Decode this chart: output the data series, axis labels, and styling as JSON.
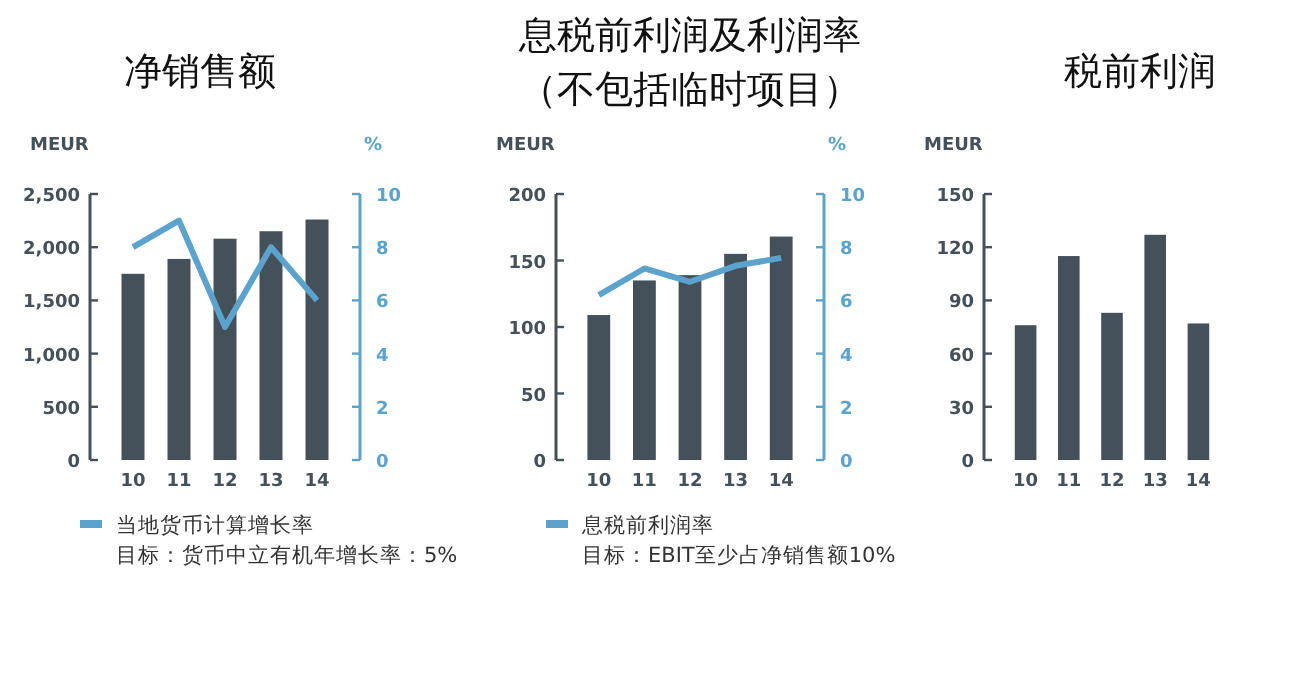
{
  "chart_data": [
    {
      "type": "bar",
      "title": "净销售额",
      "ylabel": "MEUR",
      "y2label": "%",
      "categories": [
        "10",
        "11",
        "12",
        "13",
        "14"
      ],
      "series": [
        {
          "color": "#44505a",
          "values": [
            1750,
            1890,
            2080,
            2150,
            2260
          ]
        },
        {
          "type": "line",
          "axis": "y2",
          "name": "当地货币计算增长率",
          "color": "#5ba3cc",
          "values": [
            8,
            9,
            5,
            8,
            6
          ]
        }
      ],
      "ylim": [
        0,
        2500
      ],
      "yticks": [
        0,
        500,
        {
          "value": 1000,
          "label": "1,000"
        },
        {
          "value": 1500,
          "label": "1,500"
        },
        {
          "value": 2000,
          "label": "2,000"
        },
        {
          "value": 2500,
          "label": "2,500"
        }
      ],
      "y2lim": [
        0,
        10
      ],
      "y2ticks": [
        0,
        2,
        4,
        6,
        8,
        10
      ],
      "legend": "bottom",
      "annotations": [
        "目标：货币中立有机年增长率：5%"
      ]
    },
    {
      "type": "bar",
      "title": "息税前利润及利润率（不包括临时项目）",
      "ylabel": "MEUR",
      "y2label": "%",
      "categories": [
        "10",
        "11",
        "12",
        "13",
        "14"
      ],
      "series": [
        {
          "color": "#44505a",
          "values": [
            109,
            135,
            139,
            155,
            168
          ]
        },
        {
          "type": "line",
          "axis": "y2",
          "name": "息税前利润率",
          "color": "#5ba3cc",
          "values": [
            6.2,
            7.2,
            6.7,
            7.3,
            7.6
          ]
        }
      ],
      "ylim": [
        0,
        200
      ],
      "yticks": [
        0,
        50,
        100,
        150,
        200
      ],
      "y2lim": [
        0,
        10
      ],
      "y2ticks": [
        0,
        2,
        4,
        6,
        8,
        10
      ],
      "legend": "bottom",
      "annotations": [
        "目标：EBIT至少占净销售额10%"
      ]
    },
    {
      "type": "bar",
      "title": "税前利润",
      "ylabel": "MEUR",
      "categories": [
        "10",
        "11",
        "12",
        "13",
        "14"
      ],
      "series": [
        {
          "color": "#44505a",
          "values": [
            76,
            115,
            83,
            127,
            77
          ]
        }
      ],
      "ylim": [
        0,
        150
      ],
      "yticks": [
        0,
        30,
        60,
        90,
        120,
        150
      ]
    }
  ]
}
